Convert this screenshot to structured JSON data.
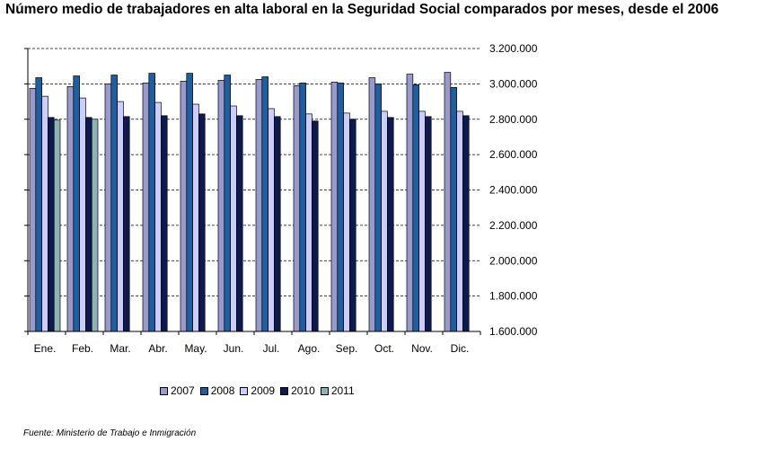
{
  "title": "Número medio de trabajadores en alta laboral en la Seguridad Social comparados por meses, desde el 2006",
  "source": "Fuente: Ministerio de Trabajo e Inmigración",
  "chart_data": {
    "type": "bar",
    "categories": [
      "Ene.",
      "Feb.",
      "Mar.",
      "Abr.",
      "May.",
      "Jun.",
      "Jul.",
      "Ago.",
      "Sep.",
      "Oct.",
      "Nov.",
      "Dic."
    ],
    "series": [
      {
        "name": "2007",
        "color": "#9999cc",
        "values": [
          2975000,
          2985000,
          3000000,
          3005000,
          3015000,
          3020000,
          3025000,
          2990000,
          3010000,
          3035000,
          3055000,
          3065000
        ]
      },
      {
        "name": "2008",
        "color": "#1f5f9f",
        "values": [
          3035000,
          3045000,
          3050000,
          3060000,
          3060000,
          3050000,
          3040000,
          3005000,
          3005000,
          3000000,
          2995000,
          2980000
        ]
      },
      {
        "name": "2009",
        "color": "#ccccff",
        "values": [
          2930000,
          2920000,
          2900000,
          2895000,
          2885000,
          2875000,
          2860000,
          2830000,
          2835000,
          2845000,
          2845000,
          2845000
        ]
      },
      {
        "name": "2010",
        "color": "#0d1a4d",
        "values": [
          2810000,
          2810000,
          2815000,
          2820000,
          2830000,
          2820000,
          2815000,
          2790000,
          2800000,
          2810000,
          2815000,
          2820000
        ]
      },
      {
        "name": "2011",
        "color": "#8fb3b3",
        "values": [
          2795000,
          2800000,
          null,
          null,
          null,
          null,
          null,
          null,
          null,
          null,
          null,
          null
        ]
      }
    ],
    "ylim": [
      1600000,
      3200000
    ],
    "yticks": [
      "1.600.000",
      "1.800.000",
      "2.000.000",
      "2.200.000",
      "2.400.000",
      "2.600.000",
      "2.800.000",
      "3.000.000",
      "3.200.000"
    ],
    "legend_position": "bottom",
    "grid": "dashed horizontal"
  }
}
